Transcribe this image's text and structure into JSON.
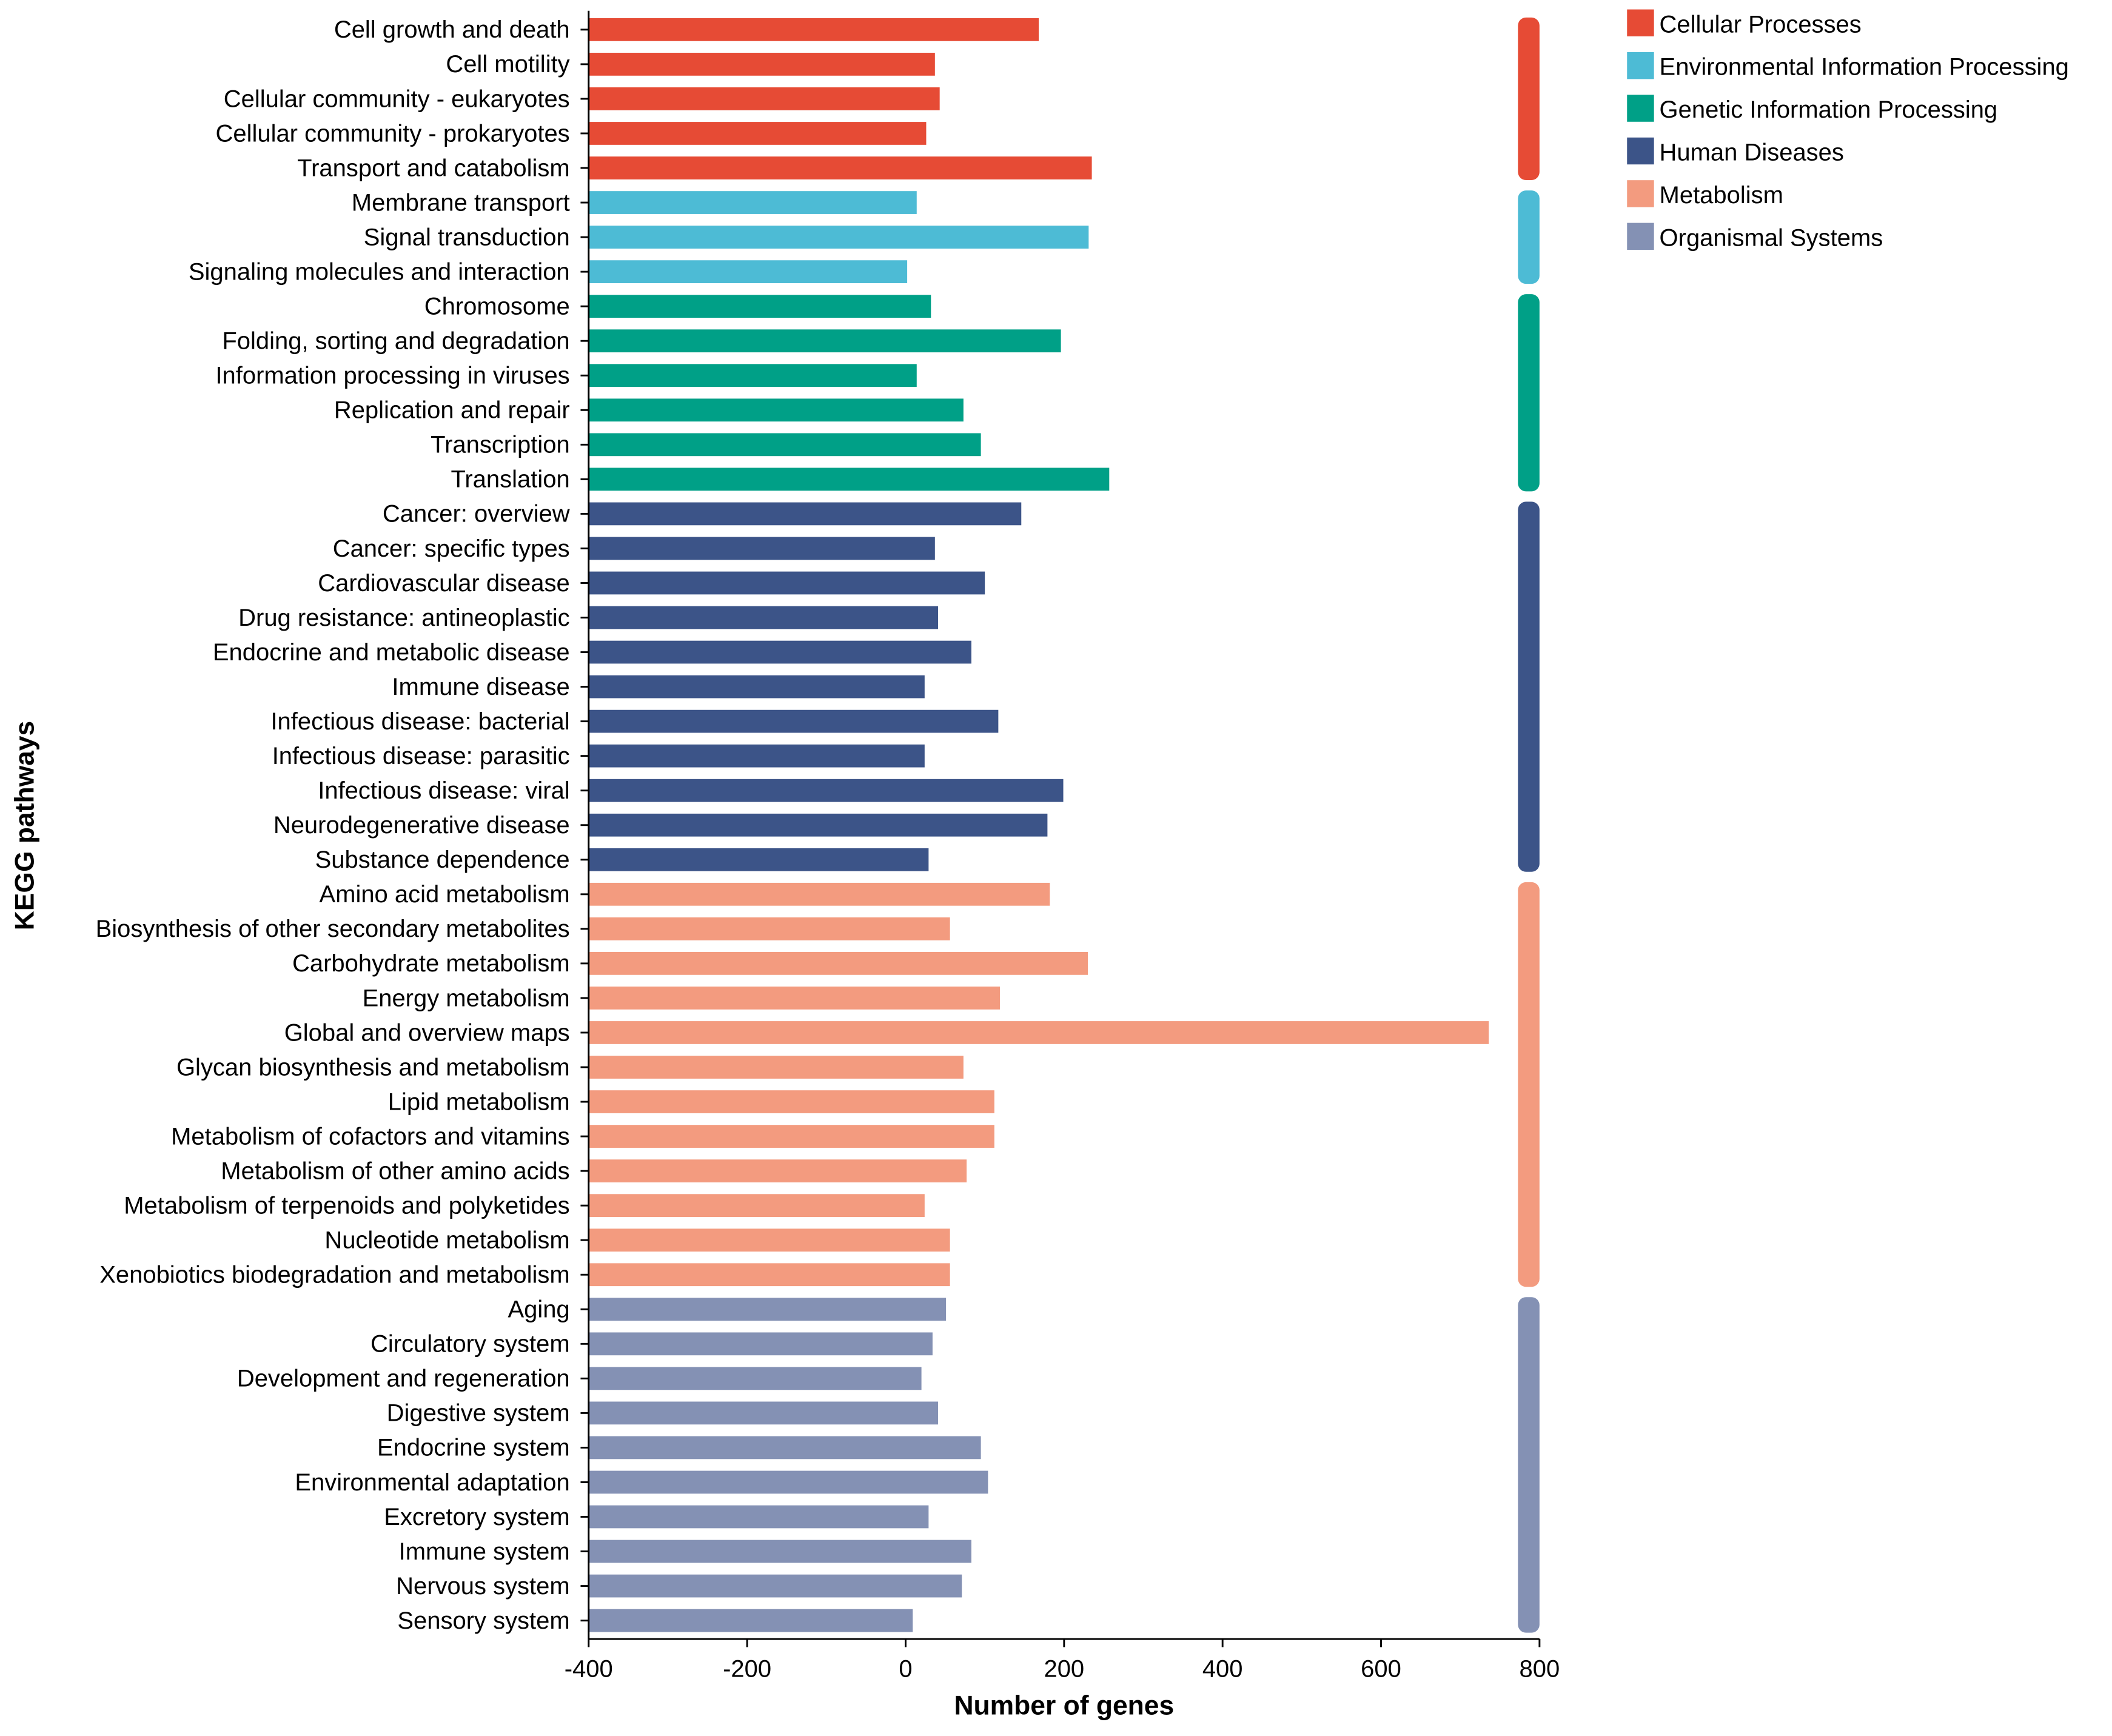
{
  "chart_data": {
    "type": "bar",
    "orientation": "horizontal",
    "xlabel": "Number of genes",
    "ylabel": "KEGG pathways",
    "xlim": [
      -400,
      800
    ],
    "xticks": [
      -400,
      -200,
      0,
      200,
      400,
      600,
      800
    ],
    "bar_baseline": -400,
    "legend_position": "top-right",
    "groups": [
      {
        "name": "Cellular Processes",
        "color": "#E64B35"
      },
      {
        "name": "Environmental Information Processing",
        "color": "#4DBBD5"
      },
      {
        "name": "Genetic Information Processing",
        "color": "#00A087"
      },
      {
        "name": "Human Diseases",
        "color": "#3C5488"
      },
      {
        "name": "Metabolism",
        "color": "#F39B7F"
      },
      {
        "name": "Organismal Systems",
        "color": "#8491B4"
      }
    ],
    "categories": [
      {
        "label": "Cell growth and death",
        "group": 0,
        "value": 168
      },
      {
        "label": "Cell motility",
        "group": 0,
        "value": 37
      },
      {
        "label": "Cellular community - eukaryotes",
        "group": 0,
        "value": 43
      },
      {
        "label": "Cellular community - prokaryotes",
        "group": 0,
        "value": 26
      },
      {
        "label": "Transport and catabolism",
        "group": 0,
        "value": 235
      },
      {
        "label": "Membrane transport",
        "group": 1,
        "value": 14
      },
      {
        "label": "Signal transduction",
        "group": 1,
        "value": 231
      },
      {
        "label": "Signaling molecules and interaction",
        "group": 1,
        "value": 2
      },
      {
        "label": "Chromosome",
        "group": 2,
        "value": 32
      },
      {
        "label": "Folding, sorting and degradation",
        "group": 2,
        "value": 196
      },
      {
        "label": "Information processing in viruses",
        "group": 2,
        "value": 14
      },
      {
        "label": "Replication and repair",
        "group": 2,
        "value": 73
      },
      {
        "label": "Transcription",
        "group": 2,
        "value": 95
      },
      {
        "label": "Translation",
        "group": 2,
        "value": 257
      },
      {
        "label": "Cancer: overview",
        "group": 3,
        "value": 146
      },
      {
        "label": "Cancer: specific types",
        "group": 3,
        "value": 37
      },
      {
        "label": "Cardiovascular disease",
        "group": 3,
        "value": 100
      },
      {
        "label": "Drug resistance: antineoplastic",
        "group": 3,
        "value": 41
      },
      {
        "label": "Endocrine and metabolic disease",
        "group": 3,
        "value": 83
      },
      {
        "label": "Immune disease",
        "group": 3,
        "value": 24
      },
      {
        "label": "Infectious disease: bacterial",
        "group": 3,
        "value": 117
      },
      {
        "label": "Infectious disease: parasitic",
        "group": 3,
        "value": 24
      },
      {
        "label": "Infectious disease: viral",
        "group": 3,
        "value": 199
      },
      {
        "label": "Neurodegenerative disease",
        "group": 3,
        "value": 179
      },
      {
        "label": "Substance dependence",
        "group": 3,
        "value": 29
      },
      {
        "label": "Amino acid metabolism",
        "group": 4,
        "value": 182
      },
      {
        "label": "Biosynthesis of other secondary metabolites",
        "group": 4,
        "value": 56
      },
      {
        "label": "Carbohydrate metabolism",
        "group": 4,
        "value": 230
      },
      {
        "label": "Energy metabolism",
        "group": 4,
        "value": 119
      },
      {
        "label": "Global and overview maps",
        "group": 4,
        "value": 736
      },
      {
        "label": "Glycan biosynthesis and metabolism",
        "group": 4,
        "value": 73
      },
      {
        "label": "Lipid metabolism",
        "group": 4,
        "value": 112
      },
      {
        "label": "Metabolism of cofactors and vitamins",
        "group": 4,
        "value": 112
      },
      {
        "label": "Metabolism of other amino acids",
        "group": 4,
        "value": 77
      },
      {
        "label": "Metabolism of terpenoids and polyketides",
        "group": 4,
        "value": 24
      },
      {
        "label": "Nucleotide metabolism",
        "group": 4,
        "value": 56
      },
      {
        "label": "Xenobiotics biodegradation and metabolism",
        "group": 4,
        "value": 56
      },
      {
        "label": "Aging",
        "group": 5,
        "value": 51
      },
      {
        "label": "Circulatory system",
        "group": 5,
        "value": 34
      },
      {
        "label": "Development and regeneration",
        "group": 5,
        "value": 20
      },
      {
        "label": "Digestive system",
        "group": 5,
        "value": 41
      },
      {
        "label": "Endocrine system",
        "group": 5,
        "value": 95
      },
      {
        "label": "Environmental adaptation",
        "group": 5,
        "value": 104
      },
      {
        "label": "Excretory system",
        "group": 5,
        "value": 29
      },
      {
        "label": "Immune system",
        "group": 5,
        "value": 83
      },
      {
        "label": "Nervous system",
        "group": 5,
        "value": 71
      },
      {
        "label": "Sensory system",
        "group": 5,
        "value": 9
      }
    ]
  }
}
